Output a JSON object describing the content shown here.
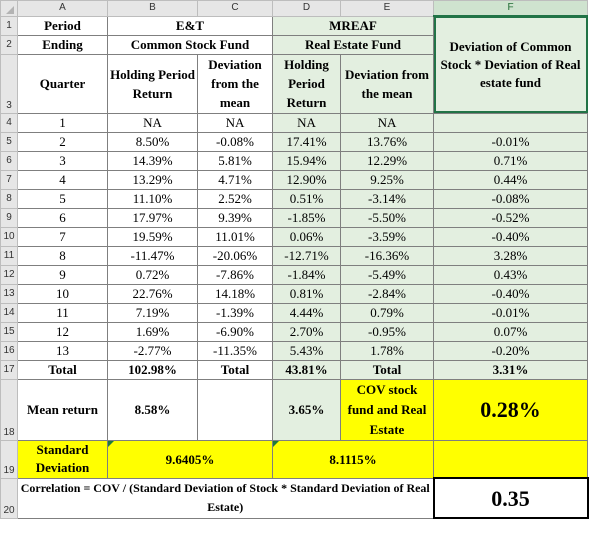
{
  "columns": [
    "A",
    "B",
    "C",
    "D",
    "E",
    "F"
  ],
  "row_numbers": [
    "1",
    "2",
    "3",
    "4",
    "5",
    "6",
    "7",
    "8",
    "9",
    "10",
    "11",
    "12",
    "13",
    "14",
    "15",
    "16",
    "17",
    "18",
    "19",
    "20"
  ],
  "header": {
    "period": "Period",
    "ending": "Ending",
    "et": "E&T",
    "et_fund": "Common Stock Fund",
    "mreaf": "MREAF",
    "mreaf_fund": "Real Estate Fund",
    "deviation_product": "Deviation of Common Stock * Deviation of Real estate fund",
    "quarter": "Quarter",
    "holding_period_return": "Holding Period Return",
    "deviation_from_mean": "Deviation from the mean"
  },
  "rows": [
    {
      "q": "1",
      "et_hpr": "NA",
      "et_dev": "NA",
      "re_hpr": "NA",
      "re_dev": "NA",
      "product": ""
    },
    {
      "q": "2",
      "et_hpr": "8.50%",
      "et_dev": "-0.08%",
      "re_hpr": "17.41%",
      "re_dev": "13.76%",
      "product": "-0.01%"
    },
    {
      "q": "3",
      "et_hpr": "14.39%",
      "et_dev": "5.81%",
      "re_hpr": "15.94%",
      "re_dev": "12.29%",
      "product": "0.71%"
    },
    {
      "q": "4",
      "et_hpr": "13.29%",
      "et_dev": "4.71%",
      "re_hpr": "12.90%",
      "re_dev": "9.25%",
      "product": "0.44%"
    },
    {
      "q": "5",
      "et_hpr": "11.10%",
      "et_dev": "2.52%",
      "re_hpr": "0.51%",
      "re_dev": "-3.14%",
      "product": "-0.08%"
    },
    {
      "q": "6",
      "et_hpr": "17.97%",
      "et_dev": "9.39%",
      "re_hpr": "-1.85%",
      "re_dev": "-5.50%",
      "product": "-0.52%"
    },
    {
      "q": "7",
      "et_hpr": "19.59%",
      "et_dev": "11.01%",
      "re_hpr": "0.06%",
      "re_dev": "-3.59%",
      "product": "-0.40%"
    },
    {
      "q": "8",
      "et_hpr": "-11.47%",
      "et_dev": "-20.06%",
      "re_hpr": "-12.71%",
      "re_dev": "-16.36%",
      "product": "3.28%"
    },
    {
      "q": "9",
      "et_hpr": "0.72%",
      "et_dev": "-7.86%",
      "re_hpr": "-1.84%",
      "re_dev": "-5.49%",
      "product": "0.43%"
    },
    {
      "q": "10",
      "et_hpr": "22.76%",
      "et_dev": "14.18%",
      "re_hpr": "0.81%",
      "re_dev": "-2.84%",
      "product": "-0.40%"
    },
    {
      "q": "11",
      "et_hpr": "7.19%",
      "et_dev": "-1.39%",
      "re_hpr": "4.44%",
      "re_dev": "0.79%",
      "product": "-0.01%"
    },
    {
      "q": "12",
      "et_hpr": "1.69%",
      "et_dev": "-6.90%",
      "re_hpr": "2.70%",
      "re_dev": "-0.95%",
      "product": "0.07%"
    },
    {
      "q": "13",
      "et_hpr": "-2.77%",
      "et_dev": "-11.35%",
      "re_hpr": "5.43%",
      "re_dev": "1.78%",
      "product": "-0.20%"
    }
  ],
  "totals": {
    "label": "Total",
    "et_hpr": "102.98%",
    "et_dev": "Total",
    "re_hpr": "43.81%",
    "re_dev": "Total",
    "product": "3.31%"
  },
  "mean": {
    "label": "Mean return",
    "et": "8.58%",
    "re": "3.65%",
    "cov_label": "COV stock fund and Real Estate",
    "cov_value": "0.28%"
  },
  "stddev": {
    "label": "Standard Deviation",
    "et": "9.6405%",
    "re": "8.1115%"
  },
  "correlation": {
    "formula": "Correlation = COV / (Standard Deviation of Stock * Standard Deviation of Real Estate)",
    "value": "0.35"
  },
  "colors": {
    "green_fill": "#e3efe0",
    "yellow_fill": "#ffff00",
    "selection": "#217346"
  }
}
